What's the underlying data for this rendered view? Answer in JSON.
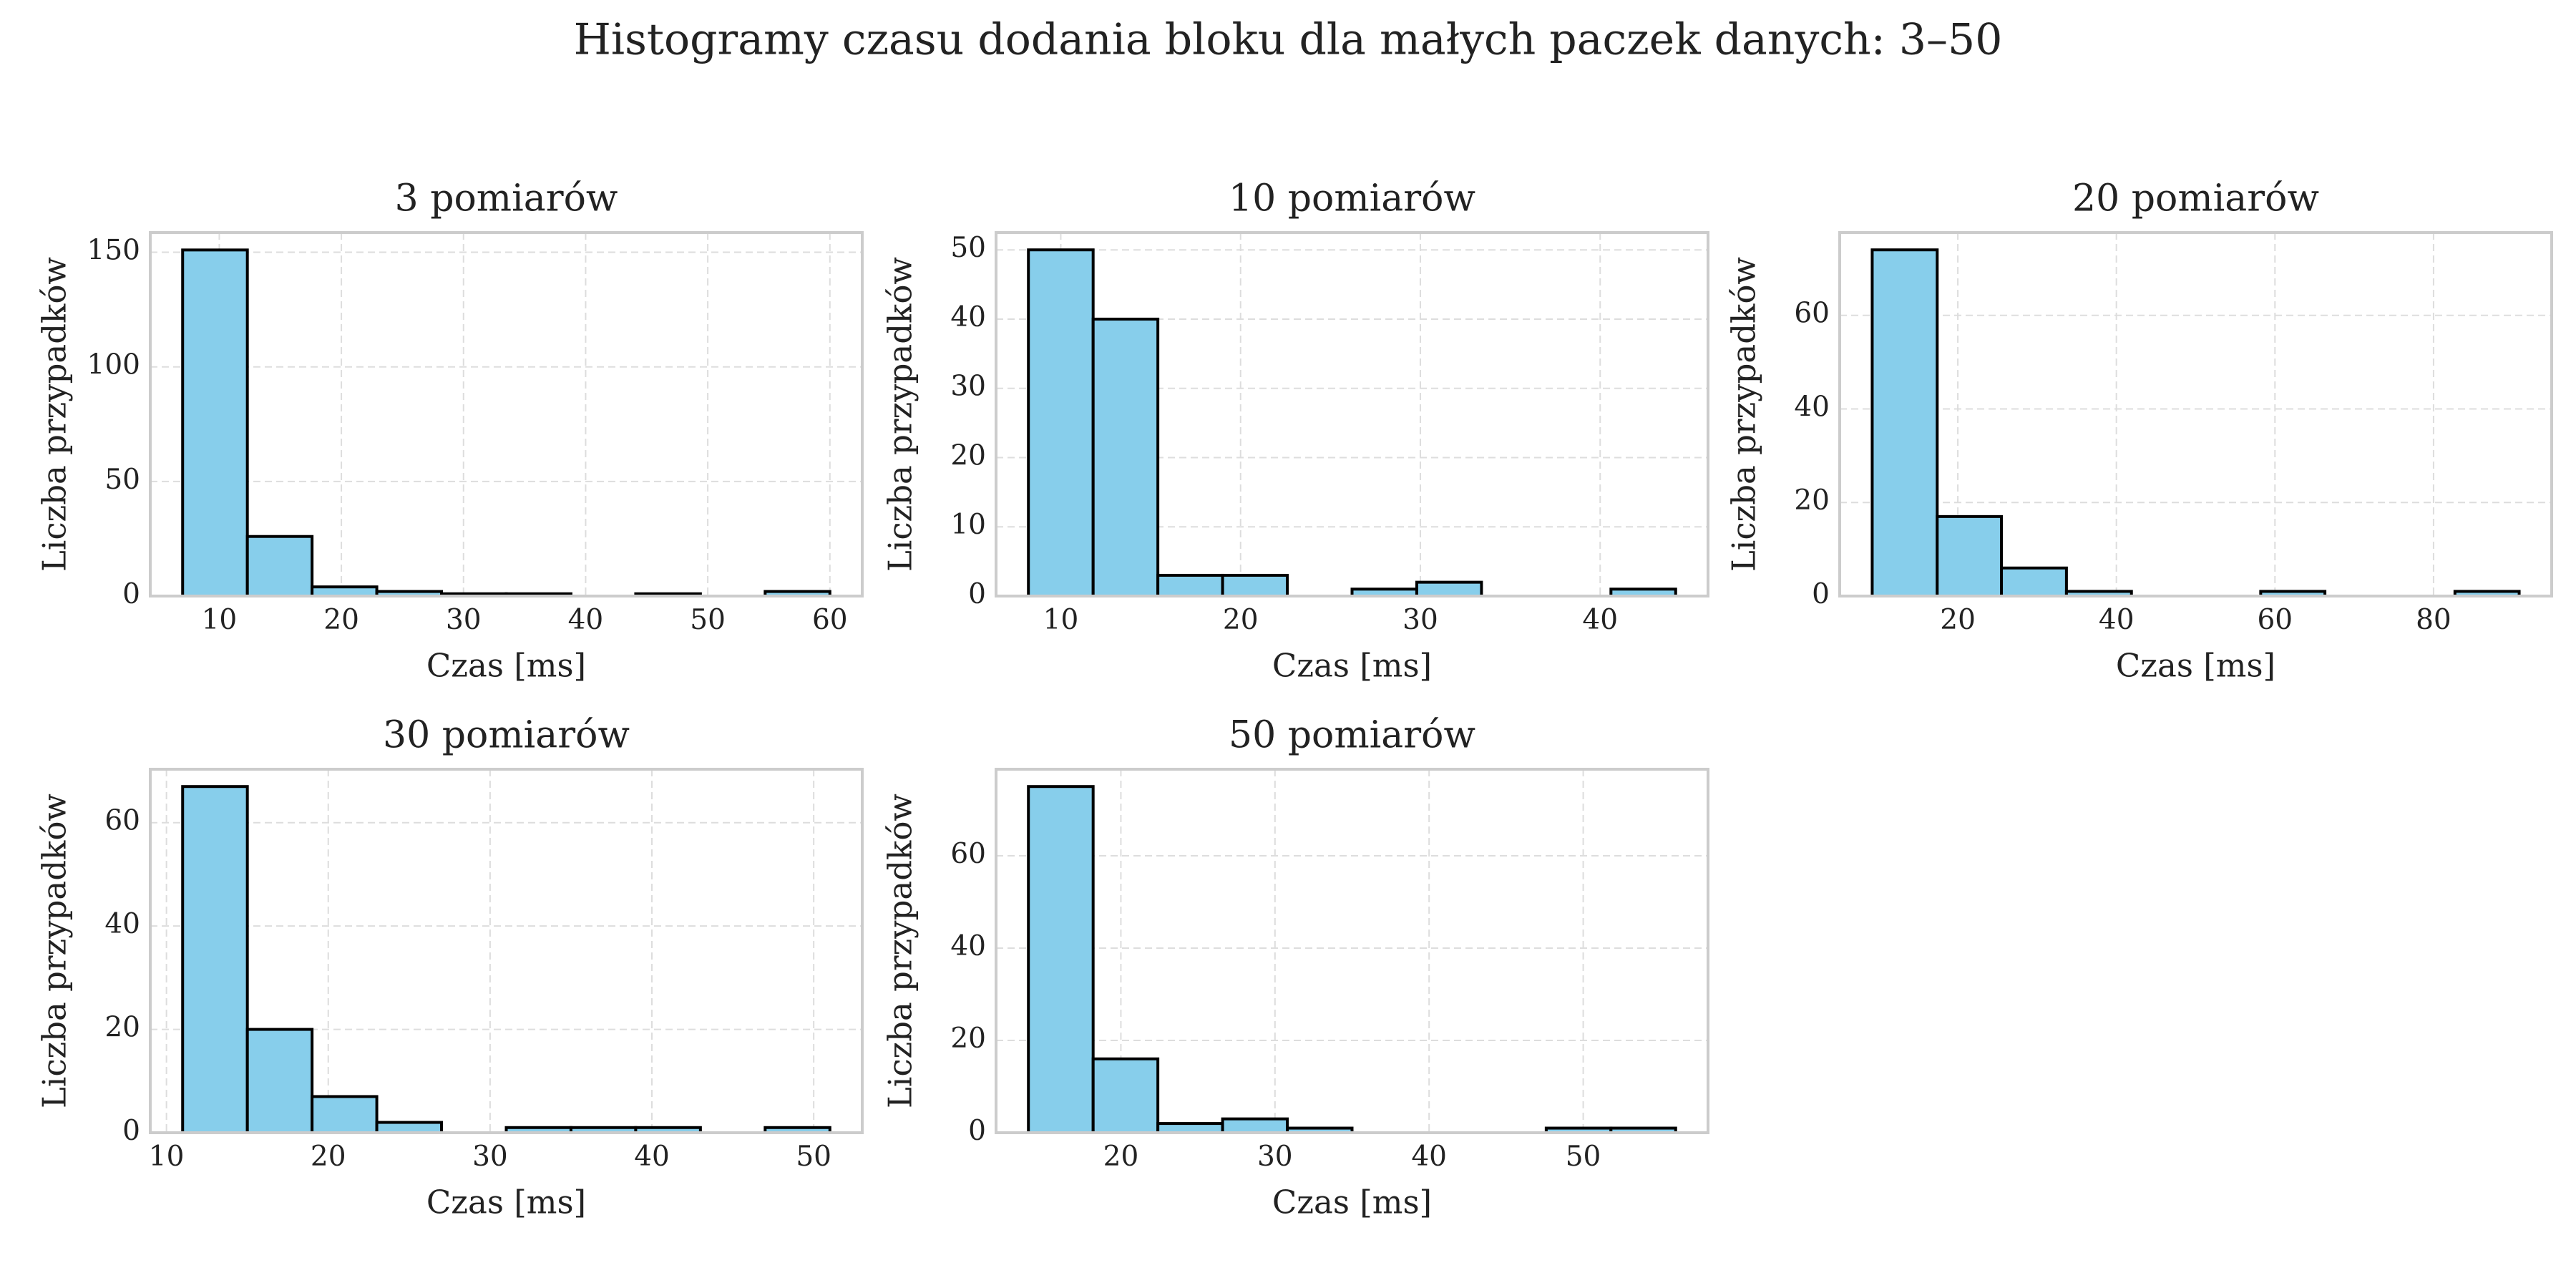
{
  "title": "Histogramy czasu dodania bloku dla małych paczek danych: 3–50",
  "chart_data": [
    {
      "type": "histogram",
      "title": "3 pomiarów",
      "xlabel": "Czas [ms]",
      "ylabel": "Liczba przypadków",
      "color": "#87ceeb",
      "edgecolor": "#000000",
      "grid": true,
      "bins": [
        7.0,
        12.3,
        17.6,
        22.9,
        28.2,
        33.5,
        38.8,
        44.1,
        49.4,
        54.7,
        60.0
      ],
      "counts": [
        151,
        26,
        4,
        2,
        1,
        1,
        0,
        1,
        0,
        2
      ],
      "xlim": [
        4.35,
        62.65
      ],
      "xticks": [
        10,
        20,
        30,
        40,
        50,
        60
      ],
      "ylim": [
        0,
        158.6
      ],
      "yticks": [
        0,
        50,
        100,
        150
      ]
    },
    {
      "type": "histogram",
      "title": "10 pomiarów",
      "xlabel": "Czas [ms]",
      "ylabel": "Liczba przypadków",
      "color": "#87ceeb",
      "edgecolor": "#000000",
      "grid": true,
      "bins": [
        8.2,
        11.8,
        15.4,
        19.0,
        22.6,
        26.2,
        29.8,
        33.4,
        37.0,
        40.6,
        44.2
      ],
      "counts": [
        50,
        40,
        3,
        3,
        0,
        1,
        2,
        0,
        0,
        1
      ],
      "xlim": [
        6.4,
        46.0
      ],
      "xticks": [
        10,
        20,
        30,
        40
      ],
      "ylim": [
        0,
        52.5
      ],
      "yticks": [
        0,
        10,
        20,
        30,
        40,
        50
      ]
    },
    {
      "type": "histogram",
      "title": "20 pomiarów",
      "xlabel": "Czas [ms]",
      "ylabel": "Liczba przypadków",
      "color": "#87ceeb",
      "edgecolor": "#000000",
      "grid": true,
      "bins": [
        9.2,
        17.4,
        25.5,
        33.7,
        41.9,
        50.0,
        58.2,
        66.3,
        74.5,
        82.7,
        90.8
      ],
      "counts": [
        74,
        17,
        6,
        1,
        0,
        0,
        1,
        0,
        0,
        1
      ],
      "xlim": [
        5.1,
        94.9
      ],
      "xticks": [
        20,
        40,
        60,
        80
      ],
      "ylim": [
        0,
        77.7
      ],
      "yticks": [
        0,
        20,
        40,
        60
      ]
    },
    {
      "type": "histogram",
      "title": "30 pomiarów",
      "xlabel": "Czas [ms]",
      "ylabel": "Liczba przypadków",
      "color": "#87ceeb",
      "edgecolor": "#000000",
      "grid": true,
      "bins": [
        11,
        15,
        19,
        23,
        27,
        31,
        35,
        39,
        43,
        47,
        51
      ],
      "counts": [
        67,
        20,
        7,
        2,
        0,
        1,
        1,
        1,
        0,
        1
      ],
      "xlim": [
        9,
        53
      ],
      "xticks": [
        10,
        20,
        30,
        40,
        50
      ],
      "ylim": [
        0,
        70.35
      ],
      "yticks": [
        0,
        20,
        40,
        60
      ]
    },
    {
      "type": "histogram",
      "title": "50 pomiarów",
      "xlabel": "Czas [ms]",
      "ylabel": "Liczba przypadków",
      "color": "#87ceeb",
      "edgecolor": "#000000",
      "grid": true,
      "bins": [
        14.0,
        18.2,
        22.4,
        26.6,
        30.8,
        35.0,
        39.2,
        43.4,
        47.6,
        51.8,
        56.0
      ],
      "counts": [
        75,
        16,
        2,
        3,
        1,
        0,
        0,
        0,
        1,
        1
      ],
      "xlim": [
        11.9,
        58.1
      ],
      "xticks": [
        20,
        30,
        40,
        50
      ],
      "ylim": [
        0,
        78.75
      ],
      "yticks": [
        0,
        20,
        40,
        60
      ]
    }
  ]
}
